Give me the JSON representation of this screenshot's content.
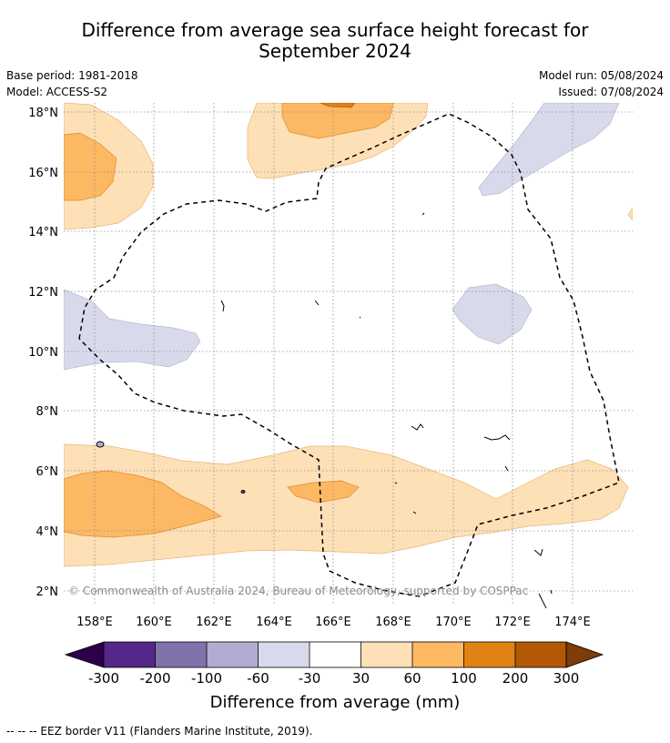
{
  "title_line1": "Difference from average sea surface height forecast for",
  "title_line2": "September 2024",
  "meta": {
    "base_period": "Base period: 1981-2018",
    "model": "Model: ACCESS-S2",
    "model_run": "Model run: 05/08/2024",
    "issued": "Issued: 07/08/2024"
  },
  "map": {
    "lat_labels": [
      "18°N",
      "16°N",
      "14°N",
      "12°N",
      "10°N",
      "8°N",
      "6°N",
      "4°N",
      "2°N"
    ],
    "lon_labels": [
      "158°E",
      "160°E",
      "162°E",
      "164°E",
      "166°E",
      "168°E",
      "170°E",
      "172°E",
      "174°E"
    ],
    "copyright": "© Commonwealth of Australia 2024, Bureau of Meteorology, supported by COSPPac"
  },
  "colorbar": {
    "ticks": [
      "-300",
      "-200",
      "-100",
      "-60",
      "-30",
      "30",
      "60",
      "100",
      "200",
      "300"
    ],
    "label": "Difference from average (mm)",
    "colors": {
      "lt_300": "#2d004b",
      "m300_m200": "#542788",
      "m200_m100": "#8073ac",
      "m100_m60": "#b2abd2",
      "m60_m30": "#d8daeb",
      "m30_30": "#ffffff",
      "p30_60": "#fee0b6",
      "p60_100": "#fdb863",
      "p100_200": "#e08214",
      "p200_300": "#b35806",
      "gt_300": "#7f3b08"
    }
  },
  "legend": {
    "eez_note": "-- -- -- EEZ border V11 (Flanders Marine Institute, 2019)."
  }
}
